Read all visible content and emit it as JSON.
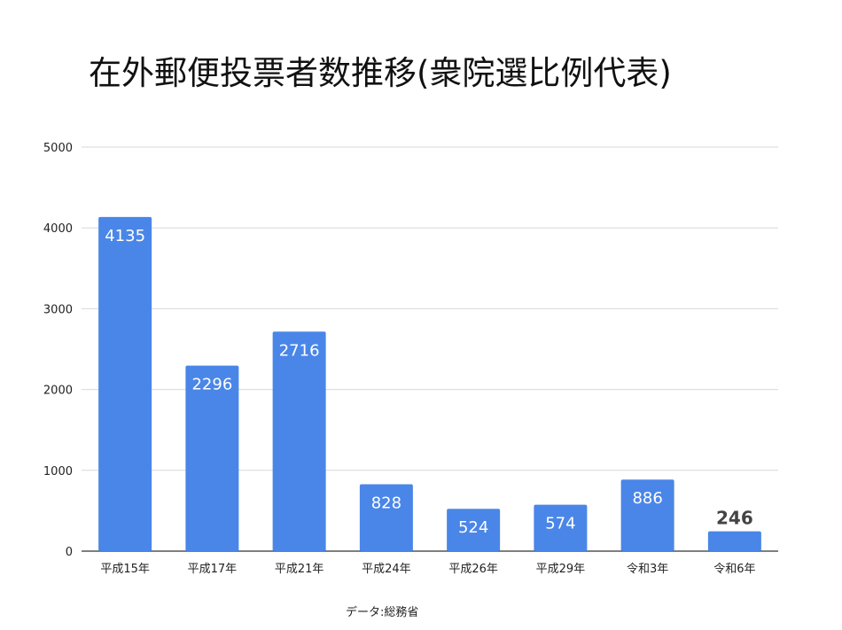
{
  "chart_data": {
    "type": "bar",
    "title": "在外郵便投票者数推移(衆院選比例代表)",
    "categories": [
      "平成15年",
      "平成17年",
      "平成21年",
      "平成24年",
      "平成26年",
      "平成29年",
      "令和3年",
      "令和6年"
    ],
    "values": [
      4135,
      2296,
      2716,
      828,
      524,
      574,
      886,
      246
    ],
    "data_labels": [
      "4135",
      "2296",
      "2716",
      "828",
      "524",
      "574",
      "886",
      "246"
    ],
    "y_ticks": [
      "0",
      "1000",
      "2000",
      "3000",
      "4000",
      "5000"
    ],
    "ylim": [
      0,
      5000
    ],
    "grid": true,
    "legend": "none",
    "bar_color": "#4a86e8",
    "grid_color": "#d9d9d9",
    "label_color_inside": "#ffffff",
    "label_color_outside": "#444444",
    "source_note": "データ:総務省"
  }
}
